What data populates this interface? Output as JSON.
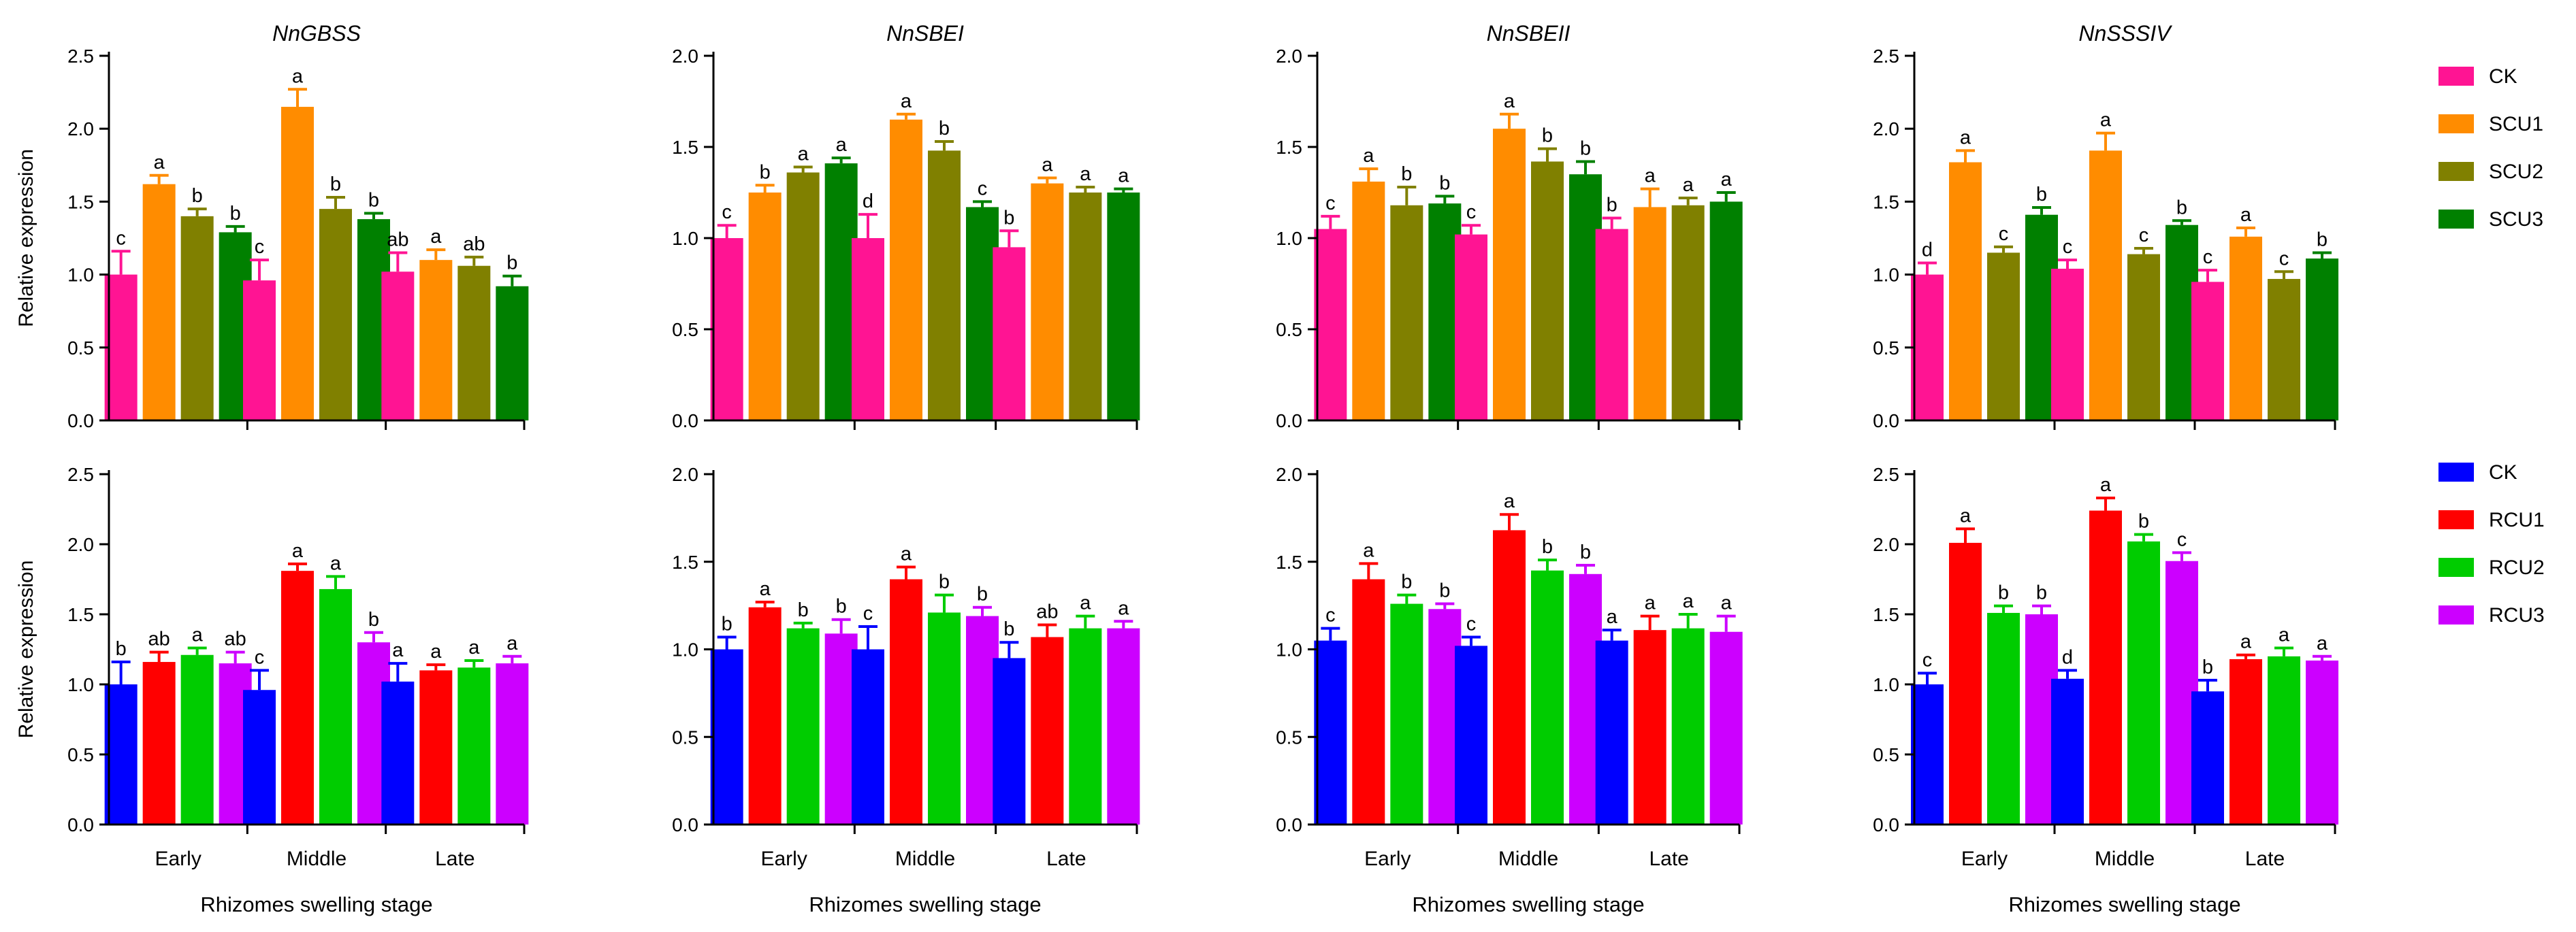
{
  "colors": {
    "top": [
      "#FF1493",
      "#FF8C00",
      "#808000",
      "#008000"
    ],
    "bottom": [
      "#0000FF",
      "#FF0000",
      "#00CC00",
      "#CC00FF"
    ]
  },
  "legend_top": [
    "CK",
    "SCU1",
    "SCU2",
    "SCU3"
  ],
  "legend_bottom": [
    "CK",
    "RCU1",
    "RCU2",
    "RCU3"
  ],
  "chart_data": [
    {
      "type": "bar",
      "title": "NnGBSS",
      "row": 0,
      "col": 0,
      "ylabel": "Relative expression",
      "xlabel": "",
      "ylim": [
        0,
        2.5
      ],
      "yticks": [
        "0.0",
        "0.5",
        "1.0",
        "1.5",
        "2.0",
        "2.5"
      ],
      "ytick_values": [
        0,
        0.5,
        1.0,
        1.5,
        2.0,
        2.5
      ],
      "categories": [
        "",
        "",
        ""
      ],
      "series": [
        {
          "name": "CK",
          "values": [
            1.0,
            0.96,
            1.02
          ],
          "errors": [
            0.16,
            0.14,
            0.13
          ],
          "labels": [
            "c",
            "c",
            "ab"
          ]
        },
        {
          "name": "SCU1",
          "values": [
            1.62,
            2.15,
            1.1
          ],
          "errors": [
            0.06,
            0.12,
            0.07
          ],
          "labels": [
            "a",
            "a",
            "a"
          ]
        },
        {
          "name": "SCU2",
          "values": [
            1.4,
            1.45,
            1.06
          ],
          "errors": [
            0.05,
            0.08,
            0.06
          ],
          "labels": [
            "b",
            "b",
            "ab"
          ]
        },
        {
          "name": "SCU3",
          "values": [
            1.29,
            1.38,
            0.92
          ],
          "errors": [
            0.04,
            0.04,
            0.07
          ],
          "labels": [
            "b",
            "b",
            "b"
          ]
        }
      ]
    },
    {
      "type": "bar",
      "title": "NnSBEI",
      "row": 0,
      "col": 1,
      "ylabel": "",
      "xlabel": "",
      "ylim": [
        0,
        2.0
      ],
      "yticks": [
        "0.0",
        "0.5",
        "1.0",
        "1.5",
        "2.0"
      ],
      "ytick_values": [
        0,
        0.5,
        1.0,
        1.5,
        2.0
      ],
      "categories": [
        "",
        "",
        ""
      ],
      "series": [
        {
          "name": "CK",
          "values": [
            1.0,
            1.0,
            0.95
          ],
          "errors": [
            0.07,
            0.13,
            0.09
          ],
          "labels": [
            "c",
            "d",
            "b"
          ]
        },
        {
          "name": "SCU1",
          "values": [
            1.25,
            1.65,
            1.3
          ],
          "errors": [
            0.04,
            0.03,
            0.03
          ],
          "labels": [
            "b",
            "a",
            "a"
          ]
        },
        {
          "name": "SCU2",
          "values": [
            1.36,
            1.48,
            1.25
          ],
          "errors": [
            0.03,
            0.05,
            0.03
          ],
          "labels": [
            "a",
            "b",
            "a"
          ]
        },
        {
          "name": "SCU3",
          "values": [
            1.41,
            1.17,
            1.25
          ],
          "errors": [
            0.03,
            0.03,
            0.02
          ],
          "labels": [
            "a",
            "c",
            "a"
          ]
        }
      ]
    },
    {
      "type": "bar",
      "title": "NnSBEII",
      "row": 0,
      "col": 2,
      "ylabel": "",
      "xlabel": "",
      "ylim": [
        0,
        2.0
      ],
      "yticks": [
        "0.0",
        "0.5",
        "1.0",
        "1.5",
        "2.0"
      ],
      "ytick_values": [
        0,
        0.5,
        1.0,
        1.5,
        2.0
      ],
      "categories": [
        "",
        "",
        ""
      ],
      "series": [
        {
          "name": "CK",
          "values": [
            1.05,
            1.02,
            1.05
          ],
          "errors": [
            0.07,
            0.05,
            0.06
          ],
          "labels": [
            "c",
            "c",
            "b"
          ]
        },
        {
          "name": "SCU1",
          "values": [
            1.31,
            1.6,
            1.17
          ],
          "errors": [
            0.07,
            0.08,
            0.1
          ],
          "labels": [
            "a",
            "a",
            "a"
          ]
        },
        {
          "name": "SCU2",
          "values": [
            1.18,
            1.42,
            1.18
          ],
          "errors": [
            0.1,
            0.07,
            0.04
          ],
          "labels": [
            "b",
            "b",
            "a"
          ]
        },
        {
          "name": "SCU3",
          "values": [
            1.19,
            1.35,
            1.2
          ],
          "errors": [
            0.04,
            0.07,
            0.05
          ],
          "labels": [
            "b",
            "b",
            "a"
          ]
        }
      ]
    },
    {
      "type": "bar",
      "title": "NnSSSIV",
      "row": 0,
      "col": 3,
      "ylabel": "",
      "xlabel": "",
      "ylim": [
        0,
        2.5
      ],
      "yticks": [
        "0.0",
        "0.5",
        "1.0",
        "1.5",
        "2.0",
        "2.5"
      ],
      "ytick_values": [
        0,
        0.5,
        1.0,
        1.5,
        2.0,
        2.5
      ],
      "categories": [
        "",
        "",
        ""
      ],
      "series": [
        {
          "name": "CK",
          "values": [
            1.0,
            1.04,
            0.95
          ],
          "errors": [
            0.08,
            0.06,
            0.08
          ],
          "labels": [
            "d",
            "c",
            "c"
          ]
        },
        {
          "name": "SCU1",
          "values": [
            1.77,
            1.85,
            1.26
          ],
          "errors": [
            0.08,
            0.12,
            0.06
          ],
          "labels": [
            "a",
            "a",
            "a"
          ]
        },
        {
          "name": "SCU2",
          "values": [
            1.15,
            1.14,
            0.97
          ],
          "errors": [
            0.04,
            0.04,
            0.05
          ],
          "labels": [
            "c",
            "c",
            "c"
          ]
        },
        {
          "name": "SCU3",
          "values": [
            1.41,
            1.34,
            1.11
          ],
          "errors": [
            0.05,
            0.03,
            0.04
          ],
          "labels": [
            "b",
            "b",
            "b"
          ]
        }
      ]
    },
    {
      "type": "bar",
      "title": "",
      "row": 1,
      "col": 0,
      "ylabel": "Relative expression",
      "xlabel": "Rhizomes swelling stage",
      "ylim": [
        0,
        2.5
      ],
      "yticks": [
        "0.0",
        "0.5",
        "1.0",
        "1.5",
        "2.0",
        "2.5"
      ],
      "ytick_values": [
        0,
        0.5,
        1.0,
        1.5,
        2.0,
        2.5
      ],
      "categories": [
        "Early",
        "Middle",
        "Late"
      ],
      "series": [
        {
          "name": "CK",
          "values": [
            1.0,
            0.96,
            1.02
          ],
          "errors": [
            0.16,
            0.14,
            0.13
          ],
          "labels": [
            "b",
            "c",
            "a"
          ]
        },
        {
          "name": "RCU1",
          "values": [
            1.16,
            1.81,
            1.1
          ],
          "errors": [
            0.07,
            0.05,
            0.04
          ],
          "labels": [
            "ab",
            "a",
            "a"
          ]
        },
        {
          "name": "RCU2",
          "values": [
            1.21,
            1.68,
            1.12
          ],
          "errors": [
            0.05,
            0.09,
            0.05
          ],
          "labels": [
            "a",
            "a",
            "a"
          ]
        },
        {
          "name": "RCU3",
          "values": [
            1.15,
            1.3,
            1.15
          ],
          "errors": [
            0.08,
            0.07,
            0.05
          ],
          "labels": [
            "ab",
            "b",
            "a"
          ]
        }
      ]
    },
    {
      "type": "bar",
      "title": "",
      "row": 1,
      "col": 1,
      "ylabel": "",
      "xlabel": "Rhizomes swelling stage",
      "ylim": [
        0,
        2.0
      ],
      "yticks": [
        "0.0",
        "0.5",
        "1.0",
        "1.5",
        "2.0"
      ],
      "ytick_values": [
        0,
        0.5,
        1.0,
        1.5,
        2.0
      ],
      "categories": [
        "Early",
        "Middle",
        "Late"
      ],
      "series": [
        {
          "name": "CK",
          "values": [
            1.0,
            1.0,
            0.95
          ],
          "errors": [
            0.07,
            0.13,
            0.09
          ],
          "labels": [
            "b",
            "c",
            "b"
          ]
        },
        {
          "name": "RCU1",
          "values": [
            1.24,
            1.4,
            1.07
          ],
          "errors": [
            0.03,
            0.07,
            0.07
          ],
          "labels": [
            "a",
            "a",
            "ab"
          ]
        },
        {
          "name": "RCU2",
          "values": [
            1.12,
            1.21,
            1.12
          ],
          "errors": [
            0.03,
            0.1,
            0.07
          ],
          "labels": [
            "b",
            "b",
            "a"
          ]
        },
        {
          "name": "RCU3",
          "values": [
            1.09,
            1.19,
            1.12
          ],
          "errors": [
            0.08,
            0.05,
            0.04
          ],
          "labels": [
            "b",
            "b",
            "a"
          ]
        }
      ]
    },
    {
      "type": "bar",
      "title": "",
      "row": 1,
      "col": 2,
      "ylabel": "",
      "xlabel": "Rhizomes swelling stage",
      "ylim": [
        0,
        2.0
      ],
      "yticks": [
        "0.0",
        "0.5",
        "1.0",
        "1.5",
        "2.0"
      ],
      "ytick_values": [
        0,
        0.5,
        1.0,
        1.5,
        2.0
      ],
      "categories": [
        "Early",
        "Middle",
        "Late"
      ],
      "series": [
        {
          "name": "CK",
          "values": [
            1.05,
            1.02,
            1.05
          ],
          "errors": [
            0.07,
            0.05,
            0.06
          ],
          "labels": [
            "c",
            "c",
            "a"
          ]
        },
        {
          "name": "RCU1",
          "values": [
            1.4,
            1.68,
            1.11
          ],
          "errors": [
            0.09,
            0.09,
            0.08
          ],
          "labels": [
            "a",
            "a",
            "a"
          ]
        },
        {
          "name": "RCU2",
          "values": [
            1.26,
            1.45,
            1.12
          ],
          "errors": [
            0.05,
            0.06,
            0.08
          ],
          "labels": [
            "b",
            "b",
            "a"
          ]
        },
        {
          "name": "RCU3",
          "values": [
            1.23,
            1.43,
            1.1
          ],
          "errors": [
            0.03,
            0.05,
            0.09
          ],
          "labels": [
            "b",
            "b",
            "a"
          ]
        }
      ]
    },
    {
      "type": "bar",
      "title": "",
      "row": 1,
      "col": 3,
      "ylabel": "",
      "xlabel": "Rhizomes swelling stage",
      "ylim": [
        0,
        2.5
      ],
      "yticks": [
        "0.0",
        "0.5",
        "1.0",
        "1.5",
        "2.0",
        "2.5"
      ],
      "ytick_values": [
        0,
        0.5,
        1.0,
        1.5,
        2.0,
        2.5
      ],
      "categories": [
        "Early",
        "Middle",
        "Late"
      ],
      "series": [
        {
          "name": "CK",
          "values": [
            1.0,
            1.04,
            0.95
          ],
          "errors": [
            0.08,
            0.06,
            0.08
          ],
          "labels": [
            "c",
            "d",
            "b"
          ]
        },
        {
          "name": "RCU1",
          "values": [
            2.01,
            2.24,
            1.18
          ],
          "errors": [
            0.1,
            0.09,
            0.03
          ],
          "labels": [
            "a",
            "a",
            "a"
          ]
        },
        {
          "name": "RCU2",
          "values": [
            1.51,
            2.02,
            1.2
          ],
          "errors": [
            0.05,
            0.05,
            0.06
          ],
          "labels": [
            "b",
            "b",
            "a"
          ]
        },
        {
          "name": "RCU3",
          "values": [
            1.5,
            1.88,
            1.17
          ],
          "errors": [
            0.06,
            0.06,
            0.03
          ],
          "labels": [
            "b",
            "c",
            "a"
          ]
        }
      ]
    }
  ]
}
